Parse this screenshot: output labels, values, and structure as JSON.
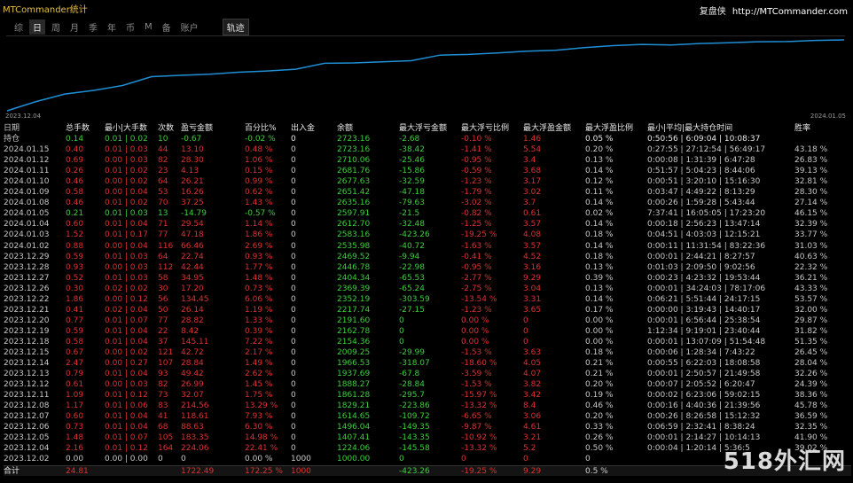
{
  "window": {
    "title": "MTCommander统计"
  },
  "brand": {
    "name": "复盘侠",
    "url": "http://MTCommander.com"
  },
  "tabs": [
    "综",
    "日",
    "周",
    "月",
    "季",
    "年",
    "币",
    "M",
    "备",
    "账户"
  ],
  "active_tab": "日",
  "trail_button": "轨迹",
  "chart": {
    "date_start": "2023.12.04",
    "date_end": "2024.01.05",
    "line_color": "#1f8fd6",
    "balance": [
      1000,
      1224.06,
      1407.41,
      1496.04,
      1614.65,
      1829.21,
      1861.28,
      1888.27,
      1937.69,
      1966.53,
      2009.25,
      2154.36,
      2162.78,
      2191.6,
      2217.74,
      2352.19,
      2369.39,
      2404.34,
      2446.78,
      2469.52,
      2535.98,
      2583.16,
      2612.7,
      2597.91,
      2635.16,
      2651.42,
      2677.63,
      2681.76,
      2710.06,
      2723.16
    ]
  },
  "table": {
    "headers": [
      "日期",
      "总手数",
      "最小|大手数",
      "次数",
      "盈亏金额",
      "百分比%",
      "出入金",
      "余额",
      "最大浮亏金额",
      "最大浮亏比例",
      "最大浮盈金额",
      "最大浮盈比例",
      "最小|平均|最大持仓时间",
      "胜率"
    ],
    "hold": [
      "持仓",
      "0.14",
      "0.01 | 0.02",
      "10",
      "-0.67",
      "-0.02 %",
      "0",
      "2723.16",
      "-2.68",
      "-0.10 %",
      "1.46",
      "0.05 %",
      "0:50:56 | 6:09:04 | 10:08:37",
      ""
    ],
    "rows": [
      {
        "c": [
          "2024.01.15",
          "0.40",
          "0.01 | 0.03",
          "44",
          "13.10",
          "0.48 %",
          "0",
          "2723.16",
          "-38.42",
          "-1.41 %",
          "5.54",
          "0.20 %",
          "0:27:55 | 27:12:54 | 56:49:17",
          "43.18 %"
        ],
        "s": "red"
      },
      {
        "c": [
          "2024.01.12",
          "0.69",
          "0.00 | 0.03",
          "82",
          "28.30",
          "1.06 %",
          "0",
          "2710.06",
          "-25.46",
          "-0.95 %",
          "3.4",
          "0.13 %",
          "0:00:08 | 1:31:39 | 6:47:28",
          "26.83 %"
        ],
        "s": "red"
      },
      {
        "c": [
          "2024.01.11",
          "0.26",
          "0.01 | 0.02",
          "23",
          "4.13",
          "0.15 %",
          "0",
          "2681.76",
          "-15.86",
          "-0.59 %",
          "3.68",
          "0.14 %",
          "0:51:57 | 5:04:23 | 8:44:06",
          "39.13 %"
        ],
        "s": "red"
      },
      {
        "c": [
          "2024.01.10",
          "0.46",
          "0.00 | 0.02",
          "64",
          "26.21",
          "0.99 %",
          "0",
          "2677.63",
          "-32.59",
          "-1.23 %",
          "3.17",
          "0.12 %",
          "0:00:51 | 3:20:10 | 15:16:30",
          "32.81 %"
        ],
        "s": "red"
      },
      {
        "c": [
          "2024.01.09",
          "0.58",
          "0.00 | 0.04",
          "53",
          "16.26",
          "0.62 %",
          "0",
          "2651.42",
          "-47.18",
          "-1.79 %",
          "3.02",
          "0.11 %",
          "0:03:47 | 4:49:22 | 8:13:29",
          "28.30 %"
        ],
        "s": "red"
      },
      {
        "c": [
          "2024.01.08",
          "0.46",
          "0.01 | 0.02",
          "70",
          "37.25",
          "1.43 %",
          "0",
          "2635.16",
          "-79.63",
          "-3.02 %",
          "3.7",
          "0.14 %",
          "0:00:26 | 1:59:28 | 5:43:44",
          "27.14 %"
        ],
        "s": "red"
      },
      {
        "c": [
          "2024.01.05",
          "0.21",
          "0.01 | 0.03",
          "13",
          "-14.79",
          "-0.57 %",
          "0",
          "2597.91",
          "-21.5",
          "-0.82 %",
          "0.61",
          "0.02 %",
          "7:37:41 | 16:05:05 | 17:23:20",
          "46.15 %"
        ],
        "s": "green"
      },
      {
        "c": [
          "2024.01.04",
          "0.60",
          "0.01 | 0.04",
          "71",
          "29.54",
          "1.14 %",
          "0",
          "2612.70",
          "-32.48",
          "-1.25 %",
          "3.57",
          "0.14 %",
          "0:00:18 | 2:56:23 | 13:47:14",
          "32.39 %"
        ],
        "s": "red"
      },
      {
        "c": [
          "2024.01.03",
          "1.52",
          "0.01 | 0.17",
          "77",
          "47.18",
          "1.86 %",
          "0",
          "2583.16",
          "-423.26",
          "-19.25 %",
          "4.08",
          "0.18 %",
          "0:04:51 | 4:03:03 | 12:15:21",
          "33.77 %"
        ],
        "s": "red"
      },
      {
        "c": [
          "2024.01.02",
          "0.88",
          "0.00 | 0.04",
          "116",
          "66.46",
          "2.69 %",
          "0",
          "2535.98",
          "-40.72",
          "-1.63 %",
          "3.57",
          "0.14 %",
          "0:00:11 | 11:31:54 | 83:22:36",
          "31.03 %"
        ],
        "s": "red"
      },
      {
        "c": [
          "2023.12.29",
          "0.59",
          "0.01 | 0.03",
          "64",
          "22.74",
          "0.93 %",
          "0",
          "2469.52",
          "-9.94",
          "-0.41 %",
          "4.52",
          "0.18 %",
          "0:00:01 | 2:44:21 | 8:27:57",
          "40.63 %"
        ],
        "s": "red"
      },
      {
        "c": [
          "2023.12.28",
          "0.93",
          "0.00 | 0.03",
          "112",
          "42.44",
          "1.77 %",
          "0",
          "2446.78",
          "-22.98",
          "-0.95 %",
          "3.16",
          "0.13 %",
          "0:01:03 | 2:09:50 | 9:02:56",
          "22.32 %"
        ],
        "s": "red"
      },
      {
        "c": [
          "2023.12.27",
          "0.52",
          "0.01 | 0.03",
          "58",
          "34.95",
          "1.48 %",
          "0",
          "2404.34",
          "-65.53",
          "-2.77 %",
          "9.29",
          "0.39 %",
          "0:00:23 | 4:23:32 | 19:53:44",
          "36.21 %"
        ],
        "s": "red"
      },
      {
        "c": [
          "2023.12.26",
          "0.30",
          "0.02 | 0.02",
          "30",
          "17.20",
          "0.73 %",
          "0",
          "2369.39",
          "-65.24",
          "-2.75 %",
          "3.04",
          "0.13 %",
          "0:00:01 | 34:24:03 | 78:17:06",
          "43.33 %"
        ],
        "s": "red"
      },
      {
        "c": [
          "2023.12.22",
          "1.86",
          "0.00 | 0.12",
          "56",
          "134.45",
          "6.06 %",
          "0",
          "2352.19",
          "-303.59",
          "-13.54 %",
          "3.31",
          "0.14 %",
          "0:06:21 | 5:51:44 | 24:17:15",
          "53.57 %"
        ],
        "s": "red"
      },
      {
        "c": [
          "2023.12.21",
          "0.41",
          "0.02 | 0.04",
          "50",
          "26.14",
          "1.19 %",
          "0",
          "2217.74",
          "-27.15",
          "-1.23 %",
          "3.65",
          "0.17 %",
          "0:00:00 | 3:19:43 | 14:40:17",
          "32.00 %"
        ],
        "s": "red"
      },
      {
        "c": [
          "2023.12.20",
          "0.77",
          "0.01 | 0.07",
          "77",
          "28.82",
          "1.33 %",
          "0",
          "2191.60",
          "0",
          "0.00 %",
          "0",
          "0.00 %",
          "0:00:01 | 6:56:44 | 25:38:54",
          "29.87 %"
        ],
        "s": "red"
      },
      {
        "c": [
          "2023.12.19",
          "0.59",
          "0.01 | 0.04",
          "22",
          "8.42",
          "0.39 %",
          "0",
          "2162.78",
          "0",
          "0.00 %",
          "0",
          "0.00 %",
          "1:12:34 | 9:19:01 | 23:40:44",
          "31.82 %"
        ],
        "s": "red"
      },
      {
        "c": [
          "2023.12.18",
          "0.58",
          "0.01 | 0.04",
          "37",
          "145.11",
          "7.22 %",
          "0",
          "2154.36",
          "0",
          "0.00 %",
          "0",
          "0.00 %",
          "0:00:01 | 13:07:09 | 51:54:48",
          "51.35 %"
        ],
        "s": "red"
      },
      {
        "c": [
          "2023.12.15",
          "0.67",
          "0.00 | 0.02",
          "121",
          "42.72",
          "2.17 %",
          "0",
          "2009.25",
          "-29.99",
          "-1.53 %",
          "3.63",
          "0.18 %",
          "0:00:06 | 1:28:34 | 7:43:22",
          "26.45 %"
        ],
        "s": "red"
      },
      {
        "c": [
          "2023.12.14",
          "2.47",
          "0.00 | 0.27",
          "107",
          "28.84",
          "1.49 %",
          "0",
          "1966.53",
          "-318.07",
          "-18.60 %",
          "4.05",
          "0.21 %",
          "0:00:55 | 6:22:03 | 18:08:58",
          "28.04 %"
        ],
        "s": "red"
      },
      {
        "c": [
          "2023.12.13",
          "0.79",
          "0.01 | 0.04",
          "93",
          "49.42",
          "2.62 %",
          "0",
          "1937.69",
          "-67.8",
          "-3.59 %",
          "4.07",
          "0.21 %",
          "0:00:01 | 2:50:57 | 21:49:58",
          "32.26 %"
        ],
        "s": "red"
      },
      {
        "c": [
          "2023.12.12",
          "0.61",
          "0.00 | 0.03",
          "82",
          "26.99",
          "1.45 %",
          "0",
          "1888.27",
          "-28.84",
          "-1.53 %",
          "3.82",
          "0.20 %",
          "0:00:07 | 2:05:52 | 6:20:47",
          "24.39 %"
        ],
        "s": "red"
      },
      {
        "c": [
          "2023.12.11",
          "1.09",
          "0.01 | 0.12",
          "73",
          "32.07",
          "1.75 %",
          "0",
          "1861.28",
          "-295.7",
          "-15.97 %",
          "3.42",
          "0.19 %",
          "0:00:02 | 6:23:06 | 59:02:15",
          "38.36 %"
        ],
        "s": "red"
      },
      {
        "c": [
          "2023.12.08",
          "1.17",
          "0.01 | 0.06",
          "83",
          "214.56",
          "13.29 %",
          "0",
          "1829.21",
          "-223.86",
          "-13.32 %",
          "8.4",
          "0.46 %",
          "0:00:16 | 4:40:36 | 21:39:56",
          "45.78 %"
        ],
        "s": "red"
      },
      {
        "c": [
          "2023.12.07",
          "0.60",
          "0.01 | 0.04",
          "41",
          "118.61",
          "7.93 %",
          "0",
          "1614.65",
          "-109.72",
          "-6.65 %",
          "3.06",
          "0.20 %",
          "0:00:26 | 8:26:58 | 15:12:32",
          "36.59 %"
        ],
        "s": "red"
      },
      {
        "c": [
          "2023.12.06",
          "0.73",
          "0.01 | 0.04",
          "68",
          "88.63",
          "6.30 %",
          "0",
          "1496.04",
          "-149.35",
          "-9.87 %",
          "4.61",
          "0.33 %",
          "0:06:59 | 2:32:41 | 8:38:24",
          "32.35 %"
        ],
        "s": "red"
      },
      {
        "c": [
          "2023.12.05",
          "1.48",
          "0.01 | 0.07",
          "105",
          "183.35",
          "14.98 %",
          "0",
          "1407.41",
          "-143.35",
          "-10.92 %",
          "3.21",
          "0.26 %",
          "0:00:01 | 2:14:27 | 10:14:13",
          "41.90 %"
        ],
        "s": "red"
      },
      {
        "c": [
          "2023.12.04",
          "2.16",
          "0.01 | 0.12",
          "164",
          "224.06",
          "22.41 %",
          "0",
          "1224.06",
          "-145.58",
          "-13.32 %",
          "5.2",
          "0.50 %",
          "0:00:04 | 1:20:14 | 5:36:5",
          "39.02 %"
        ],
        "s": "red"
      },
      {
        "c": [
          "2023.12.02",
          "0.00",
          "0.00 | 0.00",
          "0",
          "0",
          "0.00 %",
          "1000",
          "1000.00",
          "0",
          "0",
          "0",
          "0",
          "",
          ""
        ],
        "s": "plain"
      }
    ],
    "total": [
      "合计",
      "24.81",
      "",
      "",
      "1722.49",
      "172.25 %",
      "1000",
      "",
      "-423.26",
      "-19.25 %",
      "9.29",
      "0.5 %",
      "",
      ""
    ]
  },
  "watermark": "518外汇网"
}
